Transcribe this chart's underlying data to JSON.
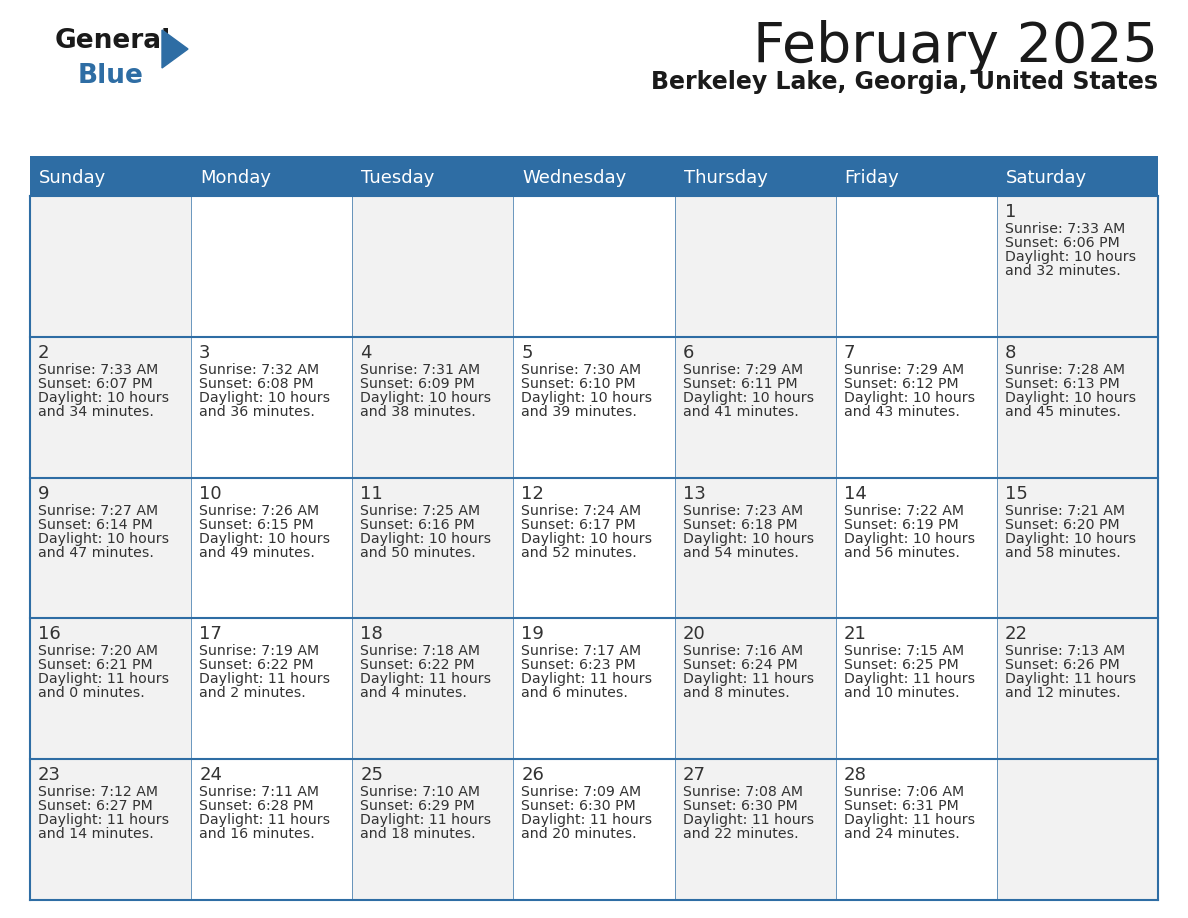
{
  "title": "February 2025",
  "subtitle": "Berkeley Lake, Georgia, United States",
  "days_of_week": [
    "Sunday",
    "Monday",
    "Tuesday",
    "Wednesday",
    "Thursday",
    "Friday",
    "Saturday"
  ],
  "header_bg": "#2e6da4",
  "header_text": "#ffffff",
  "cell_bg_even": "#f2f2f2",
  "cell_bg_odd": "#ffffff",
  "row_divider_color": "#2e6da4",
  "col_divider_color": "#cccccc",
  "day_num_color": "#333333",
  "cell_text_color": "#333333",
  "background": "#ffffff",
  "title_color": "#1a1a1a",
  "subtitle_color": "#1a1a1a",
  "logo_general_color": "#1a1a1a",
  "logo_blue_color": "#2e6da4",
  "calendar_data": [
    [
      null,
      null,
      null,
      null,
      null,
      null,
      {
        "day": 1,
        "rise": "7:33 AM",
        "set": "6:06 PM",
        "light": "10 hours and 32 minutes"
      }
    ],
    [
      {
        "day": 2,
        "rise": "7:33 AM",
        "set": "6:07 PM",
        "light": "10 hours and 34 minutes"
      },
      {
        "day": 3,
        "rise": "7:32 AM",
        "set": "6:08 PM",
        "light": "10 hours and 36 minutes"
      },
      {
        "day": 4,
        "rise": "7:31 AM",
        "set": "6:09 PM",
        "light": "10 hours and 38 minutes"
      },
      {
        "day": 5,
        "rise": "7:30 AM",
        "set": "6:10 PM",
        "light": "10 hours and 39 minutes"
      },
      {
        "day": 6,
        "rise": "7:29 AM",
        "set": "6:11 PM",
        "light": "10 hours and 41 minutes"
      },
      {
        "day": 7,
        "rise": "7:29 AM",
        "set": "6:12 PM",
        "light": "10 hours and 43 minutes"
      },
      {
        "day": 8,
        "rise": "7:28 AM",
        "set": "6:13 PM",
        "light": "10 hours and 45 minutes"
      }
    ],
    [
      {
        "day": 9,
        "rise": "7:27 AM",
        "set": "6:14 PM",
        "light": "10 hours and 47 minutes"
      },
      {
        "day": 10,
        "rise": "7:26 AM",
        "set": "6:15 PM",
        "light": "10 hours and 49 minutes"
      },
      {
        "day": 11,
        "rise": "7:25 AM",
        "set": "6:16 PM",
        "light": "10 hours and 50 minutes"
      },
      {
        "day": 12,
        "rise": "7:24 AM",
        "set": "6:17 PM",
        "light": "10 hours and 52 minutes"
      },
      {
        "day": 13,
        "rise": "7:23 AM",
        "set": "6:18 PM",
        "light": "10 hours and 54 minutes"
      },
      {
        "day": 14,
        "rise": "7:22 AM",
        "set": "6:19 PM",
        "light": "10 hours and 56 minutes"
      },
      {
        "day": 15,
        "rise": "7:21 AM",
        "set": "6:20 PM",
        "light": "10 hours and 58 minutes"
      }
    ],
    [
      {
        "day": 16,
        "rise": "7:20 AM",
        "set": "6:21 PM",
        "light": "11 hours and 0 minutes"
      },
      {
        "day": 17,
        "rise": "7:19 AM",
        "set": "6:22 PM",
        "light": "11 hours and 2 minutes"
      },
      {
        "day": 18,
        "rise": "7:18 AM",
        "set": "6:22 PM",
        "light": "11 hours and 4 minutes"
      },
      {
        "day": 19,
        "rise": "7:17 AM",
        "set": "6:23 PM",
        "light": "11 hours and 6 minutes"
      },
      {
        "day": 20,
        "rise": "7:16 AM",
        "set": "6:24 PM",
        "light": "11 hours and 8 minutes"
      },
      {
        "day": 21,
        "rise": "7:15 AM",
        "set": "6:25 PM",
        "light": "11 hours and 10 minutes"
      },
      {
        "day": 22,
        "rise": "7:13 AM",
        "set": "6:26 PM",
        "light": "11 hours and 12 minutes"
      }
    ],
    [
      {
        "day": 23,
        "rise": "7:12 AM",
        "set": "6:27 PM",
        "light": "11 hours and 14 minutes"
      },
      {
        "day": 24,
        "rise": "7:11 AM",
        "set": "6:28 PM",
        "light": "11 hours and 16 minutes"
      },
      {
        "day": 25,
        "rise": "7:10 AM",
        "set": "6:29 PM",
        "light": "11 hours and 18 minutes"
      },
      {
        "day": 26,
        "rise": "7:09 AM",
        "set": "6:30 PM",
        "light": "11 hours and 20 minutes"
      },
      {
        "day": 27,
        "rise": "7:08 AM",
        "set": "6:30 PM",
        "light": "11 hours and 22 minutes"
      },
      {
        "day": 28,
        "rise": "7:06 AM",
        "set": "6:31 PM",
        "light": "11 hours and 24 minutes"
      },
      null
    ]
  ]
}
